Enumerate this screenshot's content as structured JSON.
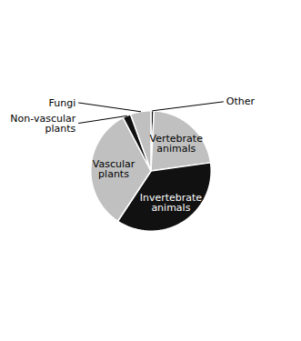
{
  "chart_data": {
    "type": "pie",
    "categories": [
      "Other",
      "Vertebrate\nanimals",
      "Invertebrate\nanimals",
      "Vascular\nplants",
      "Non-vascular\nplants",
      "Fungi"
    ],
    "values": [
      0.8,
      22.0,
      36.5,
      33.0,
      2.2,
      5.5
    ],
    "colors": [
      "#111111",
      "#c0c0c0",
      "#111111",
      "#c0c0c0",
      "#111111",
      "#c0c0c0"
    ]
  }
}
